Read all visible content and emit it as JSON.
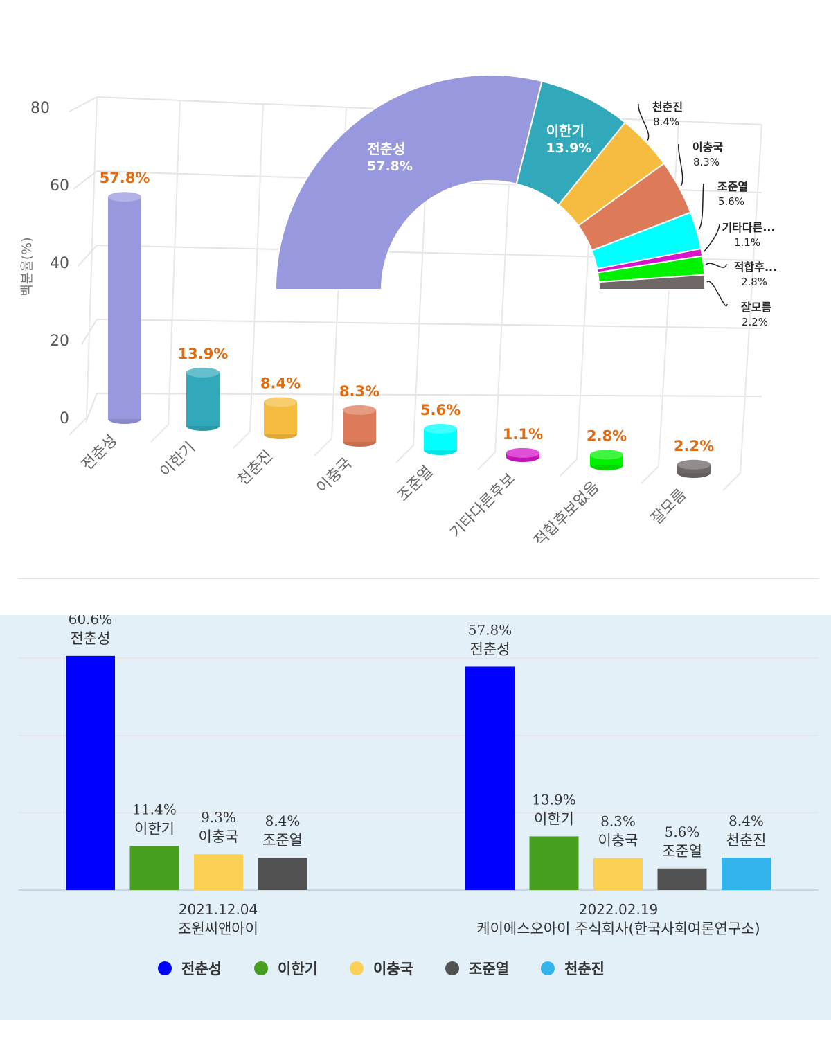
{
  "chart_data": [
    {
      "type": "bar",
      "style": "3d-cylinder",
      "ylabel": "백분율(%)",
      "ylim": [
        0,
        80
      ],
      "yticks": [
        0,
        20,
        40,
        60,
        80
      ],
      "grid": true,
      "categories": [
        "전춘성",
        "이한기",
        "천춘진",
        "이충국",
        "조준열",
        "기타다른후보",
        "적합후보없음",
        "잘모름"
      ],
      "values": [
        57.8,
        13.9,
        8.4,
        8.3,
        5.6,
        1.1,
        2.8,
        2.2
      ],
      "data_labels": [
        "57.8%",
        "13.9%",
        "8.4%",
        "8.3%",
        "5.6%",
        "1.1%",
        "2.8%",
        "2.2%"
      ],
      "colors": [
        "#9898de",
        "#31a9bb",
        "#f5bc40",
        "#dd7a5a",
        "#00ffff",
        "#d616c8",
        "#00f200",
        "#6e6766"
      ],
      "label_color": "#e06b10"
    },
    {
      "type": "pie",
      "style": "half-donut",
      "slices": [
        {
          "label": "전춘성",
          "short_label": "전춘성",
          "value": 57.8,
          "text": "57.8%",
          "color": "#9898de"
        },
        {
          "label": "이한기",
          "short_label": "이한기",
          "value": 13.9,
          "text": "13.9%",
          "color": "#31a9bb"
        },
        {
          "label": "천춘진",
          "short_label": "천춘진",
          "value": 8.4,
          "text": "8.4%",
          "color": "#f5bc40"
        },
        {
          "label": "이충국",
          "short_label": "이충국",
          "value": 8.3,
          "text": "8.3%",
          "color": "#dd7a5a"
        },
        {
          "label": "조준열",
          "short_label": "조준열",
          "value": 5.6,
          "text": "5.6%",
          "color": "#00ffff"
        },
        {
          "label": "기타다른후보",
          "short_label": "기타다른...",
          "value": 1.1,
          "text": "1.1%",
          "color": "#d616c8"
        },
        {
          "label": "적합후보없음",
          "short_label": "적합후...",
          "value": 2.8,
          "text": "2.8%",
          "color": "#00f200"
        },
        {
          "label": "잘모름",
          "short_label": "잘모름",
          "value": 2.2,
          "text": "2.2%",
          "color": "#6e6766"
        }
      ]
    },
    {
      "type": "bar",
      "style": "grouped",
      "ylim": [
        0,
        60
      ],
      "yticks": [
        0,
        20,
        40,
        60
      ],
      "grid": true,
      "legend_position": "bottom",
      "legend": [
        {
          "name": "전춘성",
          "color": "#0000ff"
        },
        {
          "name": "이한기",
          "color": "#46a01e"
        },
        {
          "name": "이충국",
          "color": "#fbd155"
        },
        {
          "name": "조준열",
          "color": "#525252"
        },
        {
          "name": "천춘진",
          "color": "#33b4ec"
        }
      ],
      "groups": [
        {
          "date": "2021.12.04",
          "pollster": "조원씨앤아이",
          "bars": [
            {
              "name": "전춘성",
              "value": 60.6,
              "text": "60.6%",
              "color": "#0000ff"
            },
            {
              "name": "이한기",
              "value": 11.4,
              "text": "11.4%",
              "color": "#46a01e"
            },
            {
              "name": "이충국",
              "value": 9.3,
              "text": "9.3%",
              "color": "#fbd155"
            },
            {
              "name": "조준열",
              "value": 8.4,
              "text": "8.4%",
              "color": "#525252"
            }
          ]
        },
        {
          "date": "2022.02.19",
          "pollster": "케이에스오아이 주식회사(한국사회여론연구소)",
          "bars": [
            {
              "name": "전춘성",
              "value": 57.8,
              "text": "57.8%",
              "color": "#0000ff"
            },
            {
              "name": "이한기",
              "value": 13.9,
              "text": "13.9%",
              "color": "#46a01e"
            },
            {
              "name": "이충국",
              "value": 8.3,
              "text": "8.3%",
              "color": "#fbd155"
            },
            {
              "name": "조준열",
              "value": 5.6,
              "text": "5.6%",
              "color": "#525252"
            },
            {
              "name": "천춘진",
              "value": 8.4,
              "text": "8.4%",
              "color": "#33b4ec"
            }
          ]
        }
      ]
    }
  ]
}
